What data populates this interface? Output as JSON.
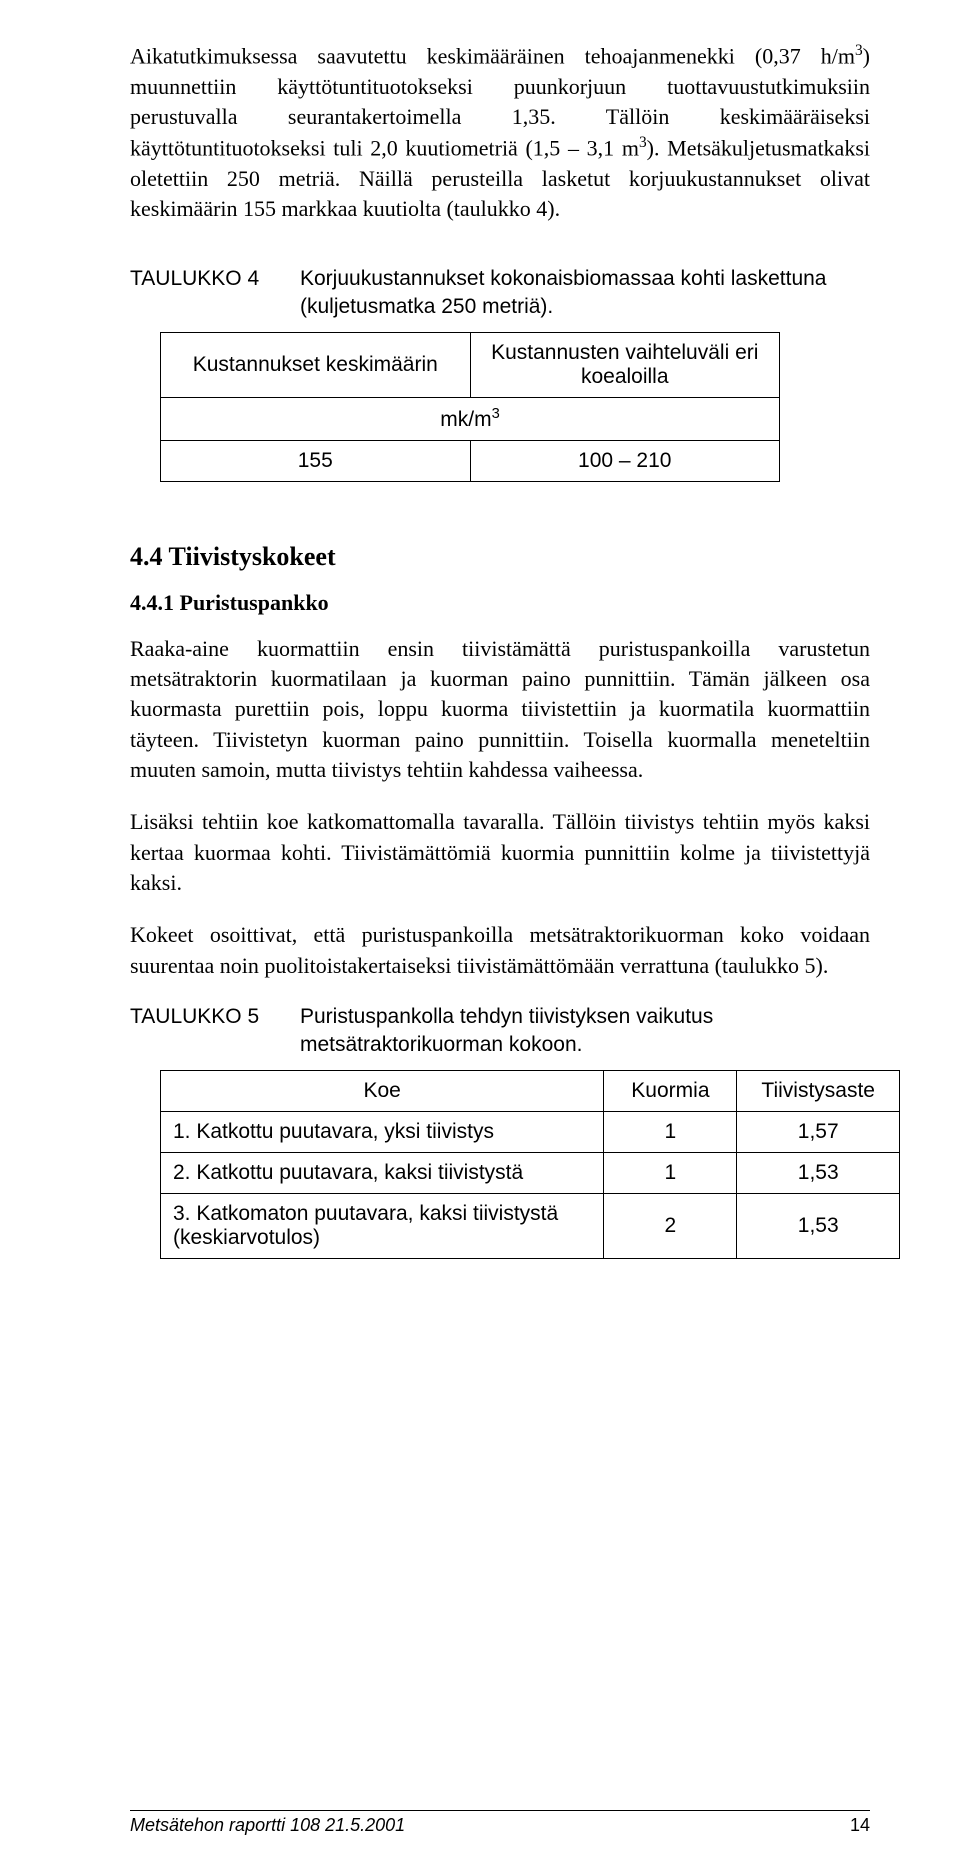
{
  "paragraphs": {
    "intro1": "Aikatutkimuksessa saavutettu keskimääräinen tehoajanmenekki (0,37 h/m³) muunnettiin käyttötuntituotokseksi puunkorjuun tuottavuustutkimuksiin perustuvalla seurantakertoimella 1,35. Tällöin keskimääräiseksi käyttötuntituotokseksi tuli 2,0 kuutiometriä (1,5 – 3,1 m³). Metsäkuljetusmatkaksi oletettiin 250 metriä. Näillä perusteilla lasketut korjuukustannukset olivat keskimäärin 155 markkaa kuutiolta (taulukko 4).",
    "p441a": "Raaka-aine kuormattiin ensin tiivistämättä puristuspankoilla varustetun metsätraktorin kuormatilaan ja kuorman paino punnittiin. Tämän jälkeen osa kuormasta purettiin pois, loppu kuorma tiivistettiin ja kuormatila kuormattiin täyteen. Tiivistetyn kuorman paino punnittiin. Toisella kuormalla meneteltiin muuten samoin, mutta tiivistys tehtiin kahdessa vaiheessa.",
    "p441b": "Lisäksi tehtiin koe katkomattomalla tavaralla. Tällöin tiivistys tehtiin myös kaksi kertaa kuormaa kohti. Tiivistämättömiä kuormia punnittiin kolme ja tiivistettyjä kaksi.",
    "p441c": "Kokeet osoittivat, että puristuspankoilla metsätraktorikuorman koko voidaan suurentaa noin puolitoistakertaiseksi tiivistämättömään verrattuna (taulukko 5)."
  },
  "table4": {
    "caption_label": "TAULUKKO 4",
    "caption_text": "Korjuukustannukset kokonaisbiomassaa kohti laskettuna (kuljetusmatka 250 metriä).",
    "header_left": "Kustannukset keskimäärin",
    "header_right": "Kustannusten vaihteluväli eri koealoilla",
    "unit": "mk/m³",
    "val_left": "155",
    "val_right": "100 – 210"
  },
  "headings": {
    "h44": "4.4 Tiivistyskokeet",
    "h441": "4.4.1 Puristuspankko"
  },
  "table5": {
    "caption_label": "TAULUKKO 5",
    "caption_text": "Puristuspankolla tehdyn tiivistyksen vaikutus metsätraktorikuorman kokoon.",
    "col1": "Koe",
    "col2": "Kuormia",
    "col3": "Tiivistysaste",
    "rows": [
      {
        "c1": "1. Katkottu puutavara, yksi tiivistys",
        "c2": "1",
        "c3": "1,57"
      },
      {
        "c1": "2. Katkottu puutavara, kaksi tiivistystä",
        "c2": "1",
        "c3": "1,53"
      },
      {
        "c1": "3. Katkomaton puutavara, kaksi tiivistystä (keskiarvotulos)",
        "c2": "2",
        "c3": "1,53"
      }
    ]
  },
  "footer": {
    "left": "Metsätehon raportti 108    21.5.2001",
    "page": "14"
  }
}
